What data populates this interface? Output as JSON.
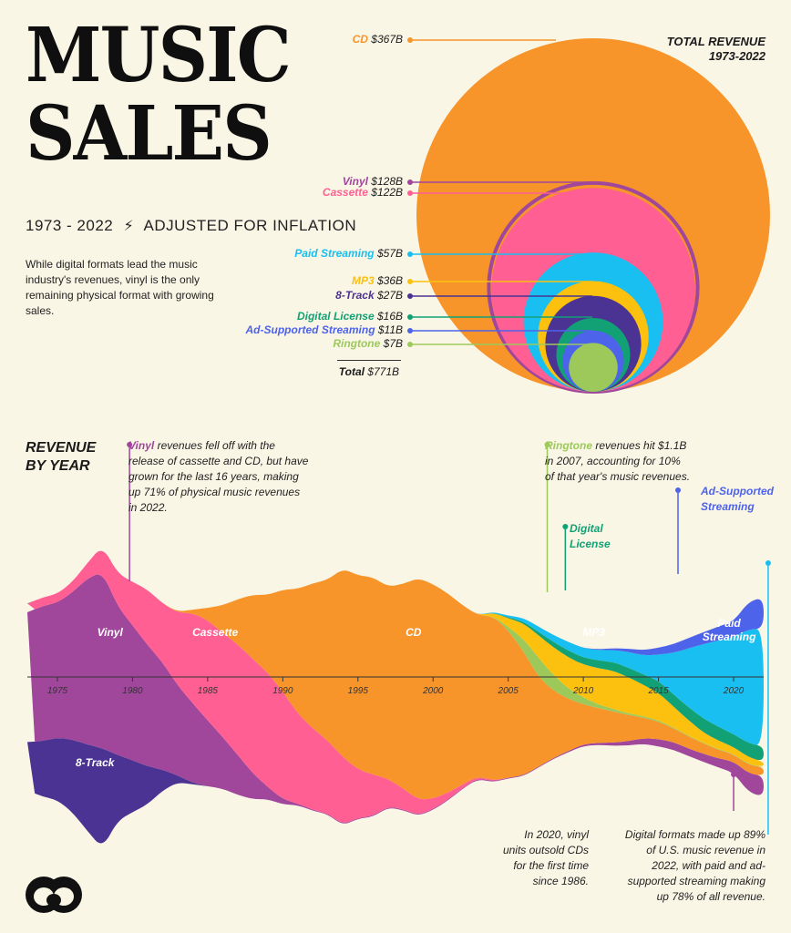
{
  "header": {
    "title_line1": "MUSIC",
    "title_line2": "SALES",
    "subtitle_years": "1973 - 2022",
    "subtitle_adjusted": "ADJUSTED FOR INFLATION",
    "description": "While digital formats lead the music industry's revenues, vinyl is the only remaining physical format with growing sales."
  },
  "total_revenue_panel": {
    "heading_line1": "TOTAL REVENUE",
    "heading_line2": "1973-2022",
    "total_label": "Total",
    "total_value": "$771B"
  },
  "revenue_by_year": {
    "heading_line1": "REVENUE",
    "heading_line2": "BY YEAR"
  },
  "annotations": {
    "vinyl_bold": "Vinyl",
    "vinyl_text": "revenues fell off with the release of cassette and CD, but have grown for the last 16 years, making up 71% of physical music revenues in 2022.",
    "ringtone_bold": "Ringtone",
    "ringtone_text": "revenues hit $1.1B in 2007, accounting for 10% of that year's music revenues.",
    "digital_license": "Digital License",
    "ad_supported": "Ad-Supported Streaming",
    "vinyl_2020": "In 2020, vinyl units outsold CDs for the first time since 1986.",
    "digital_2022": "Digital formats made up 89% of U.S. music revenue in 2022, with paid and ad-supported streaming making up 78% of all revenue."
  },
  "stream_labels": {
    "vinyl": "Vinyl",
    "cassette": "Cassette",
    "cd": "CD",
    "mp3": "MP3",
    "paid_streaming": "Paid Streaming",
    "eight_track": "8-Track"
  },
  "colors": {
    "background": "#faf6e6",
    "cd": "#f7952a",
    "vinyl": "#a0469b",
    "cassette": "#ff5f93",
    "paid_streaming": "#18bff0",
    "mp3": "#fcc10e",
    "eight_track": "#4a3392",
    "digital_license": "#12a075",
    "ad_supported": "#4d63ea",
    "ringtone": "#9cc95a"
  },
  "chart_data": [
    {
      "type": "bubble",
      "title": "TOTAL REVENUE 1973-2022",
      "unit": "$B",
      "formats": [
        {
          "name": "CD",
          "value": 367,
          "label": "$367B",
          "color": "#f7952a"
        },
        {
          "name": "Vinyl",
          "value": 128,
          "label": "$128B",
          "color": "#a0469b"
        },
        {
          "name": "Cassette",
          "value": 122,
          "label": "$122B",
          "color": "#ff5f93"
        },
        {
          "name": "Paid Streaming",
          "value": 57,
          "label": "$57B",
          "color": "#18bff0"
        },
        {
          "name": "MP3",
          "value": 36,
          "label": "$36B",
          "color": "#fcc10e"
        },
        {
          "name": "8-Track",
          "value": 27,
          "label": "$27B",
          "color": "#4a3392"
        },
        {
          "name": "Digital License",
          "value": 16,
          "label": "$16B",
          "color": "#12a075"
        },
        {
          "name": "Ad-Supported Streaming",
          "value": 11,
          "label": "$11B",
          "color": "#4d63ea"
        },
        {
          "name": "Ringtone",
          "value": 7,
          "label": "$7B",
          "color": "#9cc95a"
        }
      ],
      "total": 771
    },
    {
      "type": "area",
      "title": "REVENUE BY YEAR",
      "x_ticks": [
        1975,
        1980,
        1985,
        1990,
        1995,
        2000,
        2005,
        2010,
        2015,
        2020
      ],
      "xlim": [
        1973,
        2022
      ],
      "stacking": "streamgraph",
      "series_units": "$B (inflation adjusted, approximate)",
      "years": [
        1973,
        1974,
        1975,
        1976,
        1977,
        1978,
        1979,
        1980,
        1981,
        1982,
        1983,
        1984,
        1985,
        1986,
        1987,
        1988,
        1989,
        1990,
        1991,
        1992,
        1993,
        1994,
        1995,
        1996,
        1997,
        1998,
        1999,
        2000,
        2001,
        2002,
        2003,
        2004,
        2005,
        2006,
        2007,
        2008,
        2009,
        2010,
        2011,
        2012,
        2013,
        2014,
        2015,
        2016,
        2017,
        2018,
        2019,
        2020,
        2021,
        2022
      ],
      "series": [
        {
          "name": "8-Track",
          "values": [
            2.8,
            3.2,
            3.6,
            4.2,
            5.0,
            5.8,
            3.8,
            3.0,
            2.2,
            1.2,
            0.4,
            0.1,
            0.0,
            0.0,
            0.0,
            0.0,
            0.0,
            0.0,
            0.0,
            0.0,
            0.0,
            0.0,
            0.0,
            0.0,
            0.0,
            0.0,
            0.0,
            0.0,
            0.0,
            0.0,
            0.0,
            0.0,
            0.0,
            0.0,
            0.0,
            0.0,
            0.0,
            0.0,
            0.0,
            0.0,
            0.0,
            0.0,
            0.0,
            0.0,
            0.0,
            0.0,
            0.0,
            0.0,
            0.0,
            0.0
          ]
        },
        {
          "name": "Vinyl",
          "values": [
            7.5,
            7.8,
            7.8,
            8.5,
            9.6,
            10.2,
            8.6,
            7.8,
            7.0,
            6.2,
            5.2,
            4.6,
            3.8,
            3.0,
            2.3,
            1.5,
            0.7,
            0.3,
            0.1,
            0.05,
            0.05,
            0.05,
            0.05,
            0.05,
            0.05,
            0.05,
            0.05,
            0.05,
            0.05,
            0.05,
            0.05,
            0.05,
            0.05,
            0.05,
            0.05,
            0.06,
            0.07,
            0.1,
            0.12,
            0.18,
            0.25,
            0.32,
            0.42,
            0.45,
            0.43,
            0.47,
            0.52,
            0.65,
            1.1,
            1.2
          ]
        },
        {
          "name": "Cassette",
          "values": [
            0.5,
            0.5,
            0.5,
            0.6,
            0.9,
            1.5,
            1.9,
            2.5,
            3.2,
            3.4,
            4.2,
            5.2,
            5.8,
            6.0,
            6.4,
            6.6,
            6.6,
            6.2,
            5.2,
            4.7,
            4.2,
            3.9,
            2.8,
            2.4,
            1.6,
            1.2,
            0.9,
            0.6,
            0.4,
            0.2,
            0.1,
            0.05,
            0.0,
            0.0,
            0.0,
            0.0,
            0.0,
            0.0,
            0.0,
            0.0,
            0.0,
            0.0,
            0.0,
            0.0,
            0.0,
            0.0,
            0.0,
            0.0,
            0.0,
            0.0
          ]
        },
        {
          "name": "CD",
          "values": [
            0,
            0,
            0,
            0,
            0,
            0,
            0,
            0,
            0,
            0,
            0.05,
            0.2,
            0.7,
            1.6,
            2.6,
            3.7,
            4.5,
            5.9,
            7.2,
            8.4,
            9.3,
            10.9,
            11.2,
            11.4,
            11.1,
            11.8,
            12.8,
            12.4,
            11.5,
            10.3,
            9.3,
            9.5,
            8.5,
            7.2,
            5.2,
            3.9,
            3.0,
            2.3,
            2.0,
            1.8,
            1.5,
            1.2,
            1.0,
            0.8,
            0.7,
            0.6,
            0.5,
            0.4,
            0.5,
            0.5
          ]
        },
        {
          "name": "Ringtone",
          "values": [
            0,
            0,
            0,
            0,
            0,
            0,
            0,
            0,
            0,
            0,
            0,
            0,
            0,
            0,
            0,
            0,
            0,
            0,
            0,
            0,
            0,
            0,
            0,
            0,
            0,
            0,
            0,
            0,
            0,
            0,
            0,
            0,
            0.2,
            0.7,
            1.1,
            0.9,
            0.6,
            0.4,
            0.2,
            0.15,
            0.1,
            0.08,
            0.07,
            0.05,
            0.04,
            0.03,
            0.03,
            0.03,
            0.03,
            0.02
          ]
        },
        {
          "name": "MP3",
          "values": [
            0,
            0,
            0,
            0,
            0,
            0,
            0,
            0,
            0,
            0,
            0,
            0,
            0,
            0,
            0,
            0,
            0,
            0,
            0,
            0,
            0,
            0,
            0,
            0,
            0,
            0,
            0,
            0,
            0,
            0,
            0,
            0.2,
            0.5,
            0.9,
            1.3,
            1.6,
            1.8,
            1.9,
            2.1,
            2.2,
            2.1,
            1.8,
            1.6,
            1.2,
            0.9,
            0.6,
            0.5,
            0.4,
            0.4,
            0.3
          ]
        },
        {
          "name": "Digital License",
          "values": [
            0,
            0,
            0,
            0,
            0,
            0,
            0,
            0,
            0,
            0,
            0,
            0,
            0,
            0,
            0,
            0,
            0,
            0,
            0,
            0,
            0,
            0,
            0,
            0,
            0,
            0,
            0,
            0,
            0,
            0,
            0,
            0,
            0.05,
            0.1,
            0.2,
            0.3,
            0.4,
            0.4,
            0.45,
            0.5,
            0.55,
            0.6,
            0.7,
            0.7,
            0.75,
            0.8,
            0.8,
            0.75,
            0.8,
            0.9
          ]
        },
        {
          "name": "Paid Streaming",
          "values": [
            0,
            0,
            0,
            0,
            0,
            0,
            0,
            0,
            0,
            0,
            0,
            0,
            0,
            0,
            0,
            0,
            0,
            0,
            0,
            0,
            0,
            0,
            0,
            0,
            0,
            0,
            0,
            0,
            0,
            0,
            0,
            0.05,
            0.1,
            0.2,
            0.3,
            0.4,
            0.5,
            0.55,
            0.6,
            0.7,
            0.9,
            1.1,
            1.5,
            2.4,
            3.4,
            4.3,
            5.0,
            5.6,
            6.6,
            6.8
          ]
        },
        {
          "name": "Ad-Supported Streaming",
          "values": [
            0,
            0,
            0,
            0,
            0,
            0,
            0,
            0,
            0,
            0,
            0,
            0,
            0,
            0,
            0,
            0,
            0,
            0,
            0,
            0,
            0,
            0,
            0,
            0,
            0,
            0,
            0,
            0,
            0,
            0,
            0,
            0,
            0,
            0,
            0,
            0,
            0,
            0,
            0.05,
            0.1,
            0.2,
            0.3,
            0.4,
            0.5,
            0.6,
            0.7,
            0.8,
            0.9,
            1.6,
            1.8
          ]
        }
      ]
    }
  ]
}
